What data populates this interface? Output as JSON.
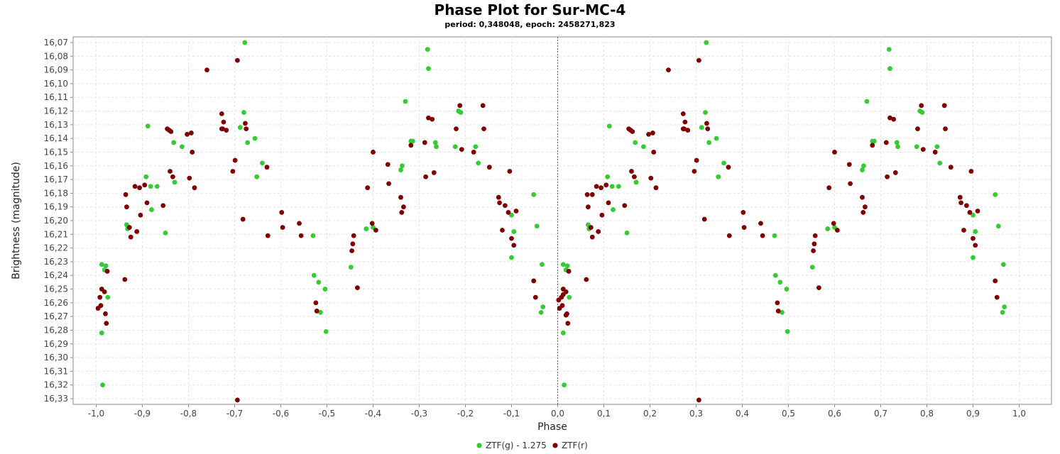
{
  "chart_data": {
    "type": "scatter",
    "title": "Phase Plot for Sur-MC-4",
    "subtitle": "period: 0,348048, epoch: 2458271,823",
    "xlabel": "Phase",
    "ylabel": "Brightness (magnitude)",
    "xlim": [
      -1.05,
      1.07
    ],
    "ylim": [
      16.07,
      16.33
    ],
    "y_inverted": true,
    "grid": true,
    "legend_position": "bottom-center",
    "x_ticks": [
      "-1,0",
      "-0,9",
      "-0,8",
      "-0,7",
      "-0,6",
      "-0,5",
      "-0,4",
      "-0,3",
      "-0,2",
      "-0,1",
      "0,0",
      "0,1",
      "0,2",
      "0,3",
      "0,4",
      "0,5",
      "0,6",
      "0,7",
      "0,8",
      "0,9",
      "1,0"
    ],
    "y_ticks": [
      "16,07",
      "16,08",
      "16,09",
      "16,10",
      "16,11",
      "16,12",
      "16,13",
      "16,14",
      "16,15",
      "16,16",
      "16,17",
      "16,18",
      "16,19",
      "16,20",
      "16,21",
      "16,22",
      "16,23",
      "16,24",
      "16,25",
      "16,26",
      "16,27",
      "16,28",
      "16,29",
      "16,30",
      "16,31",
      "16,32",
      "16,33"
    ],
    "series": [
      {
        "name": "ZTF(g) - 1.275",
        "color": "#33cc33",
        "points": [
          [
            0.012,
            16.232
          ],
          [
            0.018,
            16.236
          ],
          [
            0.021,
            16.233
          ],
          [
            0.025,
            16.256
          ],
          [
            0.012,
            16.282
          ],
          [
            0.014,
            16.32
          ],
          [
            0.066,
            16.203
          ],
          [
            0.068,
            16.206
          ],
          [
            0.108,
            16.168
          ],
          [
            0.112,
            16.131
          ],
          [
            0.118,
            16.175
          ],
          [
            0.12,
            16.192
          ],
          [
            0.132,
            16.175
          ],
          [
            0.15,
            16.209
          ],
          [
            0.168,
            16.143
          ],
          [
            0.17,
            16.172
          ],
          [
            0.186,
            16.146
          ],
          [
            0.312,
            16.132
          ],
          [
            0.32,
            16.121
          ],
          [
            0.322,
            16.07
          ],
          [
            0.328,
            16.143
          ],
          [
            0.344,
            16.14
          ],
          [
            0.348,
            16.168
          ],
          [
            0.36,
            16.158
          ],
          [
            0.47,
            16.211
          ],
          [
            0.472,
            16.24
          ],
          [
            0.482,
            16.245
          ],
          [
            0.486,
            16.267
          ],
          [
            0.496,
            16.25
          ],
          [
            0.498,
            16.281
          ],
          [
            0.552,
            16.234
          ],
          [
            0.585,
            16.206
          ],
          [
            0.6,
            16.205
          ],
          [
            0.66,
            16.163
          ],
          [
            0.663,
            16.16
          ],
          [
            0.67,
            16.113
          ],
          [
            0.682,
            16.142
          ],
          [
            0.686,
            16.142
          ],
          [
            0.718,
            16.075
          ],
          [
            0.72,
            16.089
          ],
          [
            0.735,
            16.143
          ],
          [
            0.737,
            16.146
          ],
          [
            0.778,
            16.146
          ],
          [
            0.785,
            16.12
          ],
          [
            0.79,
            16.121
          ],
          [
            0.822,
            16.146
          ],
          [
            0.828,
            16.158
          ],
          [
            0.9,
            16.196
          ],
          [
            0.9,
            16.227
          ],
          [
            0.905,
            16.208
          ],
          [
            0.948,
            16.181
          ],
          [
            0.955,
            16.204
          ],
          [
            0.964,
            16.267
          ],
          [
            0.966,
            16.232
          ],
          [
            0.968,
            16.263
          ],
          [
            -0.988,
            16.232
          ],
          [
            -0.982,
            16.236
          ],
          [
            -0.979,
            16.233
          ],
          [
            -0.975,
            16.256
          ],
          [
            -0.988,
            16.282
          ],
          [
            -0.986,
            16.32
          ],
          [
            -0.934,
            16.203
          ],
          [
            -0.932,
            16.206
          ],
          [
            -0.892,
            16.168
          ],
          [
            -0.888,
            16.131
          ],
          [
            -0.882,
            16.175
          ],
          [
            -0.88,
            16.192
          ],
          [
            -0.868,
            16.175
          ],
          [
            -0.85,
            16.209
          ],
          [
            -0.832,
            16.143
          ],
          [
            -0.83,
            16.172
          ],
          [
            -0.814,
            16.146
          ],
          [
            -0.688,
            16.132
          ],
          [
            -0.68,
            16.121
          ],
          [
            -0.678,
            16.07
          ],
          [
            -0.672,
            16.143
          ],
          [
            -0.656,
            16.14
          ],
          [
            -0.652,
            16.168
          ],
          [
            -0.64,
            16.158
          ],
          [
            -0.53,
            16.211
          ],
          [
            -0.528,
            16.24
          ],
          [
            -0.518,
            16.245
          ],
          [
            -0.514,
            16.267
          ],
          [
            -0.504,
            16.25
          ],
          [
            -0.502,
            16.281
          ],
          [
            -0.448,
            16.234
          ],
          [
            -0.415,
            16.206
          ],
          [
            -0.4,
            16.205
          ],
          [
            -0.34,
            16.163
          ],
          [
            -0.337,
            16.16
          ],
          [
            -0.33,
            16.113
          ],
          [
            -0.318,
            16.142
          ],
          [
            -0.314,
            16.142
          ],
          [
            -0.282,
            16.075
          ],
          [
            -0.28,
            16.089
          ],
          [
            -0.265,
            16.143
          ],
          [
            -0.263,
            16.146
          ],
          [
            -0.222,
            16.146
          ],
          [
            -0.215,
            16.12
          ],
          [
            -0.21,
            16.121
          ],
          [
            -0.178,
            16.146
          ],
          [
            -0.172,
            16.158
          ],
          [
            -0.1,
            16.196
          ],
          [
            -0.1,
            16.227
          ],
          [
            -0.095,
            16.208
          ],
          [
            -0.052,
            16.181
          ],
          [
            -0.045,
            16.204
          ],
          [
            -0.036,
            16.267
          ],
          [
            -0.034,
            16.232
          ],
          [
            -0.032,
            16.263
          ]
        ]
      },
      {
        "name": "ZTF(r)",
        "color": "#800000",
        "points": [
          [
            0.004,
            16.264
          ],
          [
            0.008,
            16.256
          ],
          [
            0.01,
            16.262
          ],
          [
            0.012,
            16.25
          ],
          [
            0.018,
            16.252
          ],
          [
            0.02,
            16.268
          ],
          [
            0.022,
            16.275
          ],
          [
            0.024,
            16.237
          ],
          [
            0.062,
            16.243
          ],
          [
            0.064,
            16.181
          ],
          [
            0.066,
            16.19
          ],
          [
            0.072,
            16.205
          ],
          [
            0.075,
            16.212
          ],
          [
            0.084,
            16.175
          ],
          [
            0.088,
            16.208
          ],
          [
            0.094,
            16.176
          ],
          [
            0.096,
            16.196
          ],
          [
            0.105,
            16.174
          ],
          [
            0.11,
            16.187
          ],
          [
            0.145,
            16.189
          ],
          [
            0.154,
            16.133
          ],
          [
            0.158,
            16.134
          ],
          [
            0.16,
            16.164
          ],
          [
            0.162,
            16.135
          ],
          [
            0.166,
            16.168
          ],
          [
            0.197,
            16.137
          ],
          [
            0.202,
            16.169
          ],
          [
            0.206,
            16.136
          ],
          [
            0.208,
            16.15
          ],
          [
            0.213,
            16.176
          ],
          [
            0.24,
            16.09
          ],
          [
            0.272,
            16.122
          ],
          [
            0.276,
            16.128
          ],
          [
            0.274,
            16.133
          ],
          [
            0.282,
            16.134
          ],
          [
            0.296,
            16.164
          ],
          [
            0.301,
            16.156
          ],
          [
            0.306,
            16.083
          ],
          [
            0.318,
            16.199
          ],
          [
            0.323,
            16.129
          ],
          [
            0.37,
            16.161
          ],
          [
            0.372,
            16.211
          ],
          [
            0.402,
            16.194
          ],
          [
            0.404,
            16.205
          ],
          [
            0.44,
            16.202
          ],
          [
            0.444,
            16.211
          ],
          [
            0.476,
            16.26
          ],
          [
            0.478,
            16.266
          ],
          [
            0.554,
            16.222
          ],
          [
            0.556,
            16.217
          ],
          [
            0.558,
            16.211
          ],
          [
            0.566,
            16.249
          ],
          [
            0.588,
            16.176
          ],
          [
            0.598,
            16.202
          ],
          [
            0.606,
            16.207
          ],
          [
            0.6,
            16.15
          ],
          [
            0.632,
            16.159
          ],
          [
            0.634,
            16.173
          ],
          [
            0.66,
            16.183
          ],
          [
            0.662,
            16.194
          ],
          [
            0.666,
            16.19
          ],
          [
            0.682,
            16.145
          ],
          [
            0.712,
            16.143
          ],
          [
            0.714,
            16.168
          ],
          [
            0.72,
            16.125
          ],
          [
            0.728,
            16.126
          ],
          [
            0.732,
            16.165
          ],
          [
            0.78,
            16.133
          ],
          [
            0.788,
            16.116
          ],
          [
            0.792,
            16.148
          ],
          [
            0.818,
            16.15
          ],
          [
            0.838,
            16.116
          ],
          [
            0.84,
            16.133
          ],
          [
            0.852,
            16.161
          ],
          [
            0.872,
            16.183
          ],
          [
            0.874,
            16.187
          ],
          [
            0.88,
            16.207
          ],
          [
            0.886,
            16.189
          ],
          [
            0.893,
            16.194
          ],
          [
            0.896,
            16.164
          ],
          [
            0.9,
            16.213
          ],
          [
            0.905,
            16.218
          ],
          [
            0.91,
            16.193
          ],
          [
            0.948,
            16.244
          ],
          [
            0.952,
            16.256
          ],
          [
            0.018,
            16.269
          ],
          [
            0.012,
            16.254
          ],
          [
            0.002,
            16.258
          ],
          [
            0.075,
            16.181
          ],
          [
            0.306,
            16.331
          ],
          [
            0.325,
            16.133
          ],
          [
            0.272,
            16.133
          ],
          [
            -0.996,
            16.264
          ],
          [
            -0.992,
            16.256
          ],
          [
            -0.99,
            16.262
          ],
          [
            -0.988,
            16.25
          ],
          [
            -0.982,
            16.252
          ],
          [
            -0.98,
            16.268
          ],
          [
            -0.978,
            16.275
          ],
          [
            -0.976,
            16.237
          ],
          [
            -0.938,
            16.243
          ],
          [
            -0.936,
            16.181
          ],
          [
            -0.934,
            16.19
          ],
          [
            -0.928,
            16.205
          ],
          [
            -0.925,
            16.212
          ],
          [
            -0.916,
            16.175
          ],
          [
            -0.912,
            16.208
          ],
          [
            -0.906,
            16.176
          ],
          [
            -0.904,
            16.196
          ],
          [
            -0.895,
            16.174
          ],
          [
            -0.89,
            16.187
          ],
          [
            -0.855,
            16.189
          ],
          [
            -0.846,
            16.133
          ],
          [
            -0.842,
            16.134
          ],
          [
            -0.84,
            16.164
          ],
          [
            -0.838,
            16.135
          ],
          [
            -0.834,
            16.168
          ],
          [
            -0.803,
            16.137
          ],
          [
            -0.798,
            16.169
          ],
          [
            -0.794,
            16.136
          ],
          [
            -0.792,
            16.15
          ],
          [
            -0.787,
            16.176
          ],
          [
            -0.76,
            16.09
          ],
          [
            -0.728,
            16.122
          ],
          [
            -0.724,
            16.128
          ],
          [
            -0.726,
            16.133
          ],
          [
            -0.718,
            16.134
          ],
          [
            -0.704,
            16.164
          ],
          [
            -0.699,
            16.156
          ],
          [
            -0.694,
            16.083
          ],
          [
            -0.682,
            16.199
          ],
          [
            -0.677,
            16.129
          ],
          [
            -0.63,
            16.161
          ],
          [
            -0.628,
            16.211
          ],
          [
            -0.598,
            16.194
          ],
          [
            -0.596,
            16.205
          ],
          [
            -0.56,
            16.202
          ],
          [
            -0.556,
            16.211
          ],
          [
            -0.524,
            16.26
          ],
          [
            -0.522,
            16.266
          ],
          [
            -0.446,
            16.222
          ],
          [
            -0.444,
            16.217
          ],
          [
            -0.442,
            16.211
          ],
          [
            -0.434,
            16.249
          ],
          [
            -0.412,
            16.176
          ],
          [
            -0.402,
            16.202
          ],
          [
            -0.394,
            16.207
          ],
          [
            -0.4,
            16.15
          ],
          [
            -0.368,
            16.159
          ],
          [
            -0.366,
            16.173
          ],
          [
            -0.34,
            16.183
          ],
          [
            -0.338,
            16.194
          ],
          [
            -0.334,
            16.19
          ],
          [
            -0.318,
            16.145
          ],
          [
            -0.288,
            16.143
          ],
          [
            -0.286,
            16.168
          ],
          [
            -0.28,
            16.125
          ],
          [
            -0.272,
            16.126
          ],
          [
            -0.268,
            16.165
          ],
          [
            -0.22,
            16.133
          ],
          [
            -0.212,
            16.116
          ],
          [
            -0.208,
            16.148
          ],
          [
            -0.182,
            16.15
          ],
          [
            -0.162,
            16.116
          ],
          [
            -0.16,
            16.133
          ],
          [
            -0.148,
            16.161
          ],
          [
            -0.128,
            16.183
          ],
          [
            -0.126,
            16.187
          ],
          [
            -0.12,
            16.207
          ],
          [
            -0.114,
            16.189
          ],
          [
            -0.107,
            16.194
          ],
          [
            -0.104,
            16.164
          ],
          [
            -0.1,
            16.213
          ],
          [
            -0.095,
            16.218
          ],
          [
            -0.09,
            16.193
          ],
          [
            -0.052,
            16.244
          ],
          [
            -0.048,
            16.256
          ],
          [
            -0.694,
            16.331
          ],
          [
            -0.675,
            16.133
          ],
          [
            -0.728,
            16.133
          ]
        ]
      }
    ]
  }
}
